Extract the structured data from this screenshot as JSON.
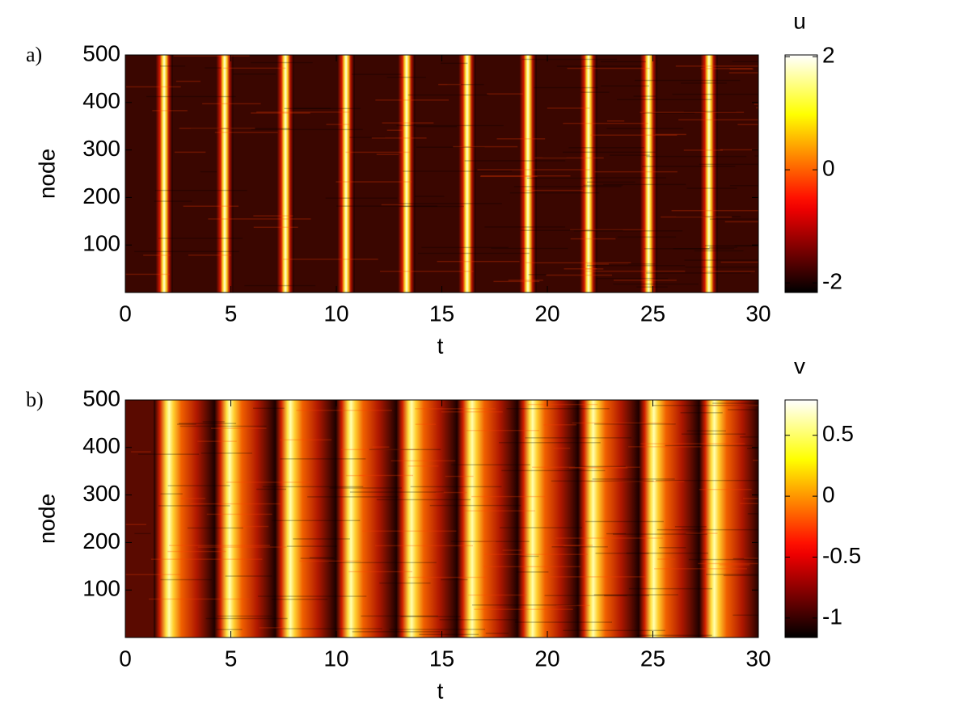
{
  "chart_data": [
    {
      "type": "heatmap",
      "panel_label": "a)",
      "x_label": "t",
      "y_label": "node",
      "colorbar_label": "u",
      "xlim": [
        0,
        30
      ],
      "xticks": [
        0,
        5,
        10,
        15,
        20,
        25,
        30
      ],
      "ylim": [
        0,
        500
      ],
      "yticks": [
        100,
        200,
        300,
        400,
        500
      ],
      "clim": [
        -2.17,
        2.03
      ],
      "cticks": [
        -2,
        0,
        2
      ],
      "colormap": "hot",
      "pulse_times": [
        1.84,
        4.71,
        7.59,
        10.46,
        13.33,
        16.2,
        19.08,
        21.95,
        24.8,
        27.66
      ]
    },
    {
      "type": "heatmap",
      "panel_label": "b)",
      "x_label": "t",
      "y_label": "node",
      "colorbar_label": "v",
      "xlim": [
        0,
        30
      ],
      "xticks": [
        0,
        5,
        10,
        15,
        20,
        25,
        30
      ],
      "ylim": [
        0,
        500
      ],
      "yticks": [
        100,
        200,
        300,
        400,
        500
      ],
      "clim": [
        -1.16,
        0.79
      ],
      "cticks": [
        -1,
        -0.5,
        0,
        0.5
      ],
      "colormap": "hot",
      "pulse_times": [
        2.05,
        4.92,
        7.8,
        10.67,
        13.54,
        16.41,
        19.28,
        22.15,
        25.02,
        27.89
      ]
    }
  ]
}
